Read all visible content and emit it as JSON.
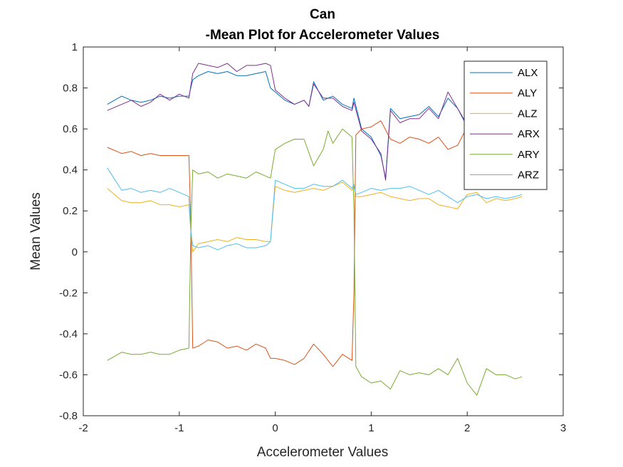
{
  "chart_data": {
    "type": "line",
    "title": "Can",
    "subtitle": "-Mean Plot for Accelerometer Values",
    "xlabel": "Accelerometer Values",
    "ylabel": "Mean Values",
    "xlim": [
      -2,
      3
    ],
    "ylim": [
      -0.8,
      1
    ],
    "xticks": [
      -2,
      -1,
      0,
      1,
      2,
      3
    ],
    "xtick_labels": [
      "-2",
      "-1",
      "0",
      "1",
      "2",
      "3"
    ],
    "yticks": [
      -0.8,
      -0.6,
      -0.4,
      -0.2,
      0,
      0.2,
      0.4,
      0.6,
      0.8,
      1
    ],
    "ytick_labels": [
      "-0.8",
      "-0.6",
      "-0.4",
      "-0.2",
      "0",
      "0.2",
      "0.4",
      "0.6",
      "0.8",
      "1"
    ],
    "grid": false,
    "legend_position": "top-right",
    "series": [
      {
        "name": "ALX",
        "color": "#0072BD",
        "x": [
          -1.75,
          -1.6,
          -1.5,
          -1.4,
          -1.3,
          -1.2,
          -1.1,
          -1.0,
          -0.9,
          -0.86,
          -0.8,
          -0.7,
          -0.6,
          -0.5,
          -0.4,
          -0.3,
          -0.2,
          -0.1,
          -0.05,
          0.0,
          0.1,
          0.2,
          0.3,
          0.35,
          0.4,
          0.5,
          0.6,
          0.7,
          0.8,
          0.82,
          0.9,
          1.0,
          1.1,
          1.15,
          1.2,
          1.3,
          1.4,
          1.5,
          1.6,
          1.7,
          1.8,
          1.9,
          2.0
        ],
        "y": [
          0.72,
          0.76,
          0.74,
          0.73,
          0.74,
          0.76,
          0.75,
          0.76,
          0.76,
          0.84,
          0.86,
          0.88,
          0.87,
          0.88,
          0.86,
          0.86,
          0.87,
          0.88,
          0.8,
          0.78,
          0.74,
          0.72,
          0.74,
          0.71,
          0.83,
          0.74,
          0.76,
          0.72,
          0.7,
          0.75,
          0.6,
          0.56,
          0.47,
          0.36,
          0.7,
          0.65,
          0.66,
          0.67,
          0.71,
          0.66,
          0.75,
          0.7,
          0.61
        ]
      },
      {
        "name": "ALY",
        "color": "#D95319",
        "x": [
          -1.75,
          -1.6,
          -1.5,
          -1.4,
          -1.3,
          -1.2,
          -1.1,
          -1.0,
          -0.9,
          -0.88,
          -0.86,
          -0.8,
          -0.7,
          -0.6,
          -0.5,
          -0.4,
          -0.3,
          -0.2,
          -0.1,
          -0.05,
          0.0,
          0.1,
          0.2,
          0.3,
          0.4,
          0.5,
          0.6,
          0.7,
          0.8,
          0.82,
          0.84,
          0.9,
          1.0,
          1.1,
          1.2,
          1.3,
          1.4,
          1.5,
          1.6,
          1.7,
          1.8,
          1.9,
          2.0
        ],
        "y": [
          0.51,
          0.48,
          0.49,
          0.47,
          0.48,
          0.47,
          0.47,
          0.47,
          0.47,
          0.15,
          -0.47,
          -0.46,
          -0.43,
          -0.44,
          -0.47,
          -0.46,
          -0.48,
          -0.45,
          -0.47,
          -0.52,
          -0.52,
          -0.53,
          -0.55,
          -0.52,
          -0.45,
          -0.5,
          -0.56,
          -0.5,
          -0.53,
          -0.2,
          0.57,
          0.6,
          0.61,
          0.64,
          0.55,
          0.53,
          0.56,
          0.55,
          0.53,
          0.56,
          0.5,
          0.52,
          0.61
        ]
      },
      {
        "name": "ALZ",
        "color": "#EDB120",
        "x": [
          -1.75,
          -1.6,
          -1.5,
          -1.4,
          -1.3,
          -1.2,
          -1.1,
          -1.0,
          -0.9,
          -0.88,
          -0.86,
          -0.8,
          -0.7,
          -0.6,
          -0.5,
          -0.4,
          -0.3,
          -0.2,
          -0.1,
          -0.05,
          0.0,
          0.1,
          0.2,
          0.3,
          0.4,
          0.5,
          0.6,
          0.7,
          0.8,
          0.82,
          0.84,
          0.9,
          1.0,
          1.1,
          1.2,
          1.3,
          1.4,
          1.5,
          1.6,
          1.7,
          1.8,
          1.9,
          2.0,
          2.1,
          2.2,
          2.3,
          2.4,
          2.5,
          2.57
        ],
        "y": [
          0.31,
          0.25,
          0.24,
          0.24,
          0.25,
          0.23,
          0.23,
          0.22,
          0.23,
          0.1,
          0.0,
          0.04,
          0.05,
          0.06,
          0.05,
          0.07,
          0.06,
          0.06,
          0.05,
          0.05,
          0.32,
          0.3,
          0.29,
          0.3,
          0.31,
          0.3,
          0.32,
          0.34,
          0.3,
          0.32,
          0.27,
          0.27,
          0.28,
          0.29,
          0.27,
          0.26,
          0.25,
          0.26,
          0.26,
          0.23,
          0.22,
          0.21,
          0.28,
          0.29,
          0.24,
          0.26,
          0.25,
          0.26,
          0.27
        ]
      },
      {
        "name": "ARX",
        "color": "#7E2F8E",
        "x": [
          -1.75,
          -1.6,
          -1.5,
          -1.4,
          -1.3,
          -1.2,
          -1.1,
          -1.0,
          -0.9,
          -0.86,
          -0.8,
          -0.7,
          -0.6,
          -0.5,
          -0.4,
          -0.3,
          -0.2,
          -0.1,
          -0.05,
          0.0,
          0.1,
          0.2,
          0.3,
          0.35,
          0.4,
          0.5,
          0.6,
          0.7,
          0.8,
          0.82,
          0.9,
          1.0,
          1.1,
          1.15,
          1.2,
          1.3,
          1.4,
          1.5,
          1.6,
          1.7,
          1.8,
          1.9,
          2.0
        ],
        "y": [
          0.69,
          0.72,
          0.74,
          0.71,
          0.73,
          0.77,
          0.74,
          0.77,
          0.75,
          0.87,
          0.92,
          0.91,
          0.9,
          0.92,
          0.88,
          0.91,
          0.91,
          0.92,
          0.91,
          0.79,
          0.75,
          0.72,
          0.74,
          0.71,
          0.82,
          0.75,
          0.75,
          0.71,
          0.69,
          0.73,
          0.59,
          0.55,
          0.48,
          0.35,
          0.69,
          0.63,
          0.65,
          0.65,
          0.7,
          0.65,
          0.78,
          0.7,
          0.62
        ]
      },
      {
        "name": "ARY",
        "color": "#77AC30",
        "x": [
          -1.75,
          -1.6,
          -1.5,
          -1.4,
          -1.3,
          -1.2,
          -1.1,
          -1.0,
          -0.9,
          -0.88,
          -0.86,
          -0.8,
          -0.7,
          -0.6,
          -0.5,
          -0.4,
          -0.3,
          -0.2,
          -0.1,
          -0.05,
          0.0,
          0.1,
          0.2,
          0.3,
          0.4,
          0.5,
          0.55,
          0.6,
          0.7,
          0.8,
          0.82,
          0.84,
          0.9,
          1.0,
          1.1,
          1.2,
          1.3,
          1.4,
          1.5,
          1.6,
          1.7,
          1.8,
          1.9,
          2.0,
          2.1,
          2.2,
          2.3,
          2.4,
          2.5,
          2.57
        ],
        "y": [
          -0.53,
          -0.49,
          -0.5,
          -0.5,
          -0.49,
          -0.5,
          -0.5,
          -0.48,
          -0.47,
          0.1,
          0.4,
          0.38,
          0.39,
          0.36,
          0.38,
          0.37,
          0.36,
          0.39,
          0.37,
          0.36,
          0.5,
          0.53,
          0.55,
          0.55,
          0.42,
          0.5,
          0.59,
          0.53,
          0.6,
          0.56,
          0.2,
          -0.56,
          -0.61,
          -0.64,
          -0.63,
          -0.67,
          -0.58,
          -0.6,
          -0.59,
          -0.6,
          -0.57,
          -0.6,
          -0.52,
          -0.64,
          -0.7,
          -0.57,
          -0.6,
          -0.6,
          -0.62,
          -0.61
        ]
      },
      {
        "name": "ARZ",
        "color": "#4DBEEE",
        "x": [
          -1.75,
          -1.6,
          -1.5,
          -1.4,
          -1.3,
          -1.2,
          -1.1,
          -1.0,
          -0.9,
          -0.88,
          -0.86,
          -0.8,
          -0.7,
          -0.6,
          -0.5,
          -0.4,
          -0.3,
          -0.2,
          -0.1,
          -0.05,
          0.0,
          0.1,
          0.2,
          0.3,
          0.4,
          0.5,
          0.6,
          0.7,
          0.8,
          0.82,
          0.84,
          0.9,
          1.0,
          1.1,
          1.2,
          1.3,
          1.4,
          1.5,
          1.6,
          1.7,
          1.8,
          1.9,
          2.0,
          2.1,
          2.2,
          2.3,
          2.4,
          2.5,
          2.57
        ],
        "y": [
          0.41,
          0.3,
          0.31,
          0.29,
          0.3,
          0.29,
          0.31,
          0.29,
          0.27,
          0.1,
          0.03,
          0.02,
          0.03,
          0.01,
          0.03,
          0.04,
          0.02,
          0.02,
          0.03,
          0.05,
          0.35,
          0.33,
          0.31,
          0.31,
          0.33,
          0.32,
          0.32,
          0.35,
          0.31,
          0.33,
          0.28,
          0.29,
          0.31,
          0.3,
          0.31,
          0.31,
          0.32,
          0.3,
          0.28,
          0.3,
          0.27,
          0.24,
          0.27,
          0.28,
          0.26,
          0.27,
          0.26,
          0.27,
          0.28
        ]
      }
    ]
  }
}
